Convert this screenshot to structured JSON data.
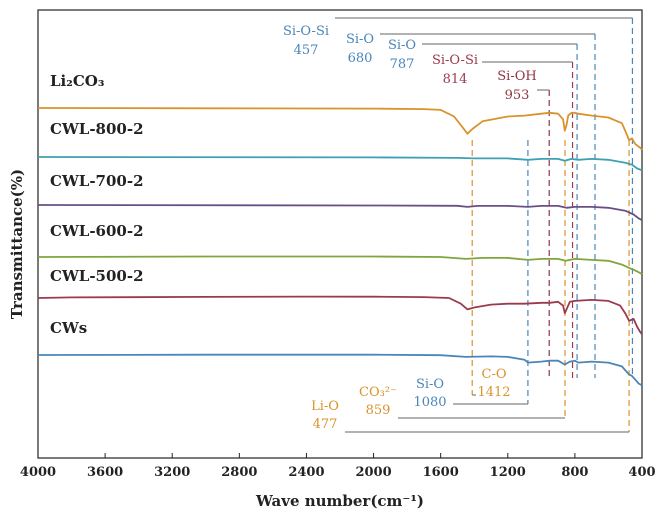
{
  "colors": {
    "blue": "#4a86b8",
    "red": "#9b3a4e",
    "orange": "#d9932b",
    "teal": "#3e9fb5",
    "purple": "#6a4f86",
    "green": "#7fa53d",
    "maroon": "#8f3545",
    "gray": "#555555"
  },
  "chart_data": {
    "type": "line",
    "xlabel": "Wave number(cm⁻¹)",
    "ylabel": "Transmittance(%)",
    "xlim": [
      4000,
      400
    ],
    "x_ticks": [
      "4000",
      "3600",
      "3200",
      "2800",
      "2400",
      "2000",
      "1600",
      "1200",
      "800",
      "400"
    ],
    "y_ticks": [],
    "grid": false,
    "series": [
      {
        "name": "Li₂CO₃",
        "color": "#d9932b",
        "points": [
          [
            4000,
            0
          ],
          [
            3000,
            0.3
          ],
          [
            2000,
            0.6
          ],
          [
            1700,
            1.2
          ],
          [
            1600,
            2
          ],
          [
            1520,
            9
          ],
          [
            1480,
            18
          ],
          [
            1440,
            27
          ],
          [
            1410,
            22
          ],
          [
            1350,
            14
          ],
          [
            1200,
            9
          ],
          [
            1100,
            8
          ],
          [
            1000,
            6
          ],
          [
            950,
            5
          ],
          [
            900,
            6
          ],
          [
            870,
            12
          ],
          [
            860,
            24
          ],
          [
            850,
            18
          ],
          [
            840,
            8
          ],
          [
            820,
            5
          ],
          [
            800,
            5
          ],
          [
            780,
            6
          ],
          [
            700,
            8
          ],
          [
            600,
            10
          ],
          [
            520,
            16
          ],
          [
            490,
            28
          ],
          [
            477,
            34
          ],
          [
            460,
            32
          ],
          [
            440,
            38
          ],
          [
            410,
            42
          ],
          [
            400,
            44
          ]
        ]
      },
      {
        "name": "CWL-800-2",
        "color": "#3e9fb5",
        "points": [
          [
            4000,
            0
          ],
          [
            2000,
            0.4
          ],
          [
            1500,
            1
          ],
          [
            1400,
            1.5
          ],
          [
            1200,
            1.5
          ],
          [
            1080,
            3
          ],
          [
            1000,
            2
          ],
          [
            900,
            2
          ],
          [
            860,
            4
          ],
          [
            820,
            2
          ],
          [
            780,
            3
          ],
          [
            700,
            2
          ],
          [
            600,
            3
          ],
          [
            500,
            6
          ],
          [
            460,
            8
          ],
          [
            430,
            12
          ],
          [
            400,
            14
          ]
        ]
      },
      {
        "name": "CWL-700-2",
        "color": "#6a4f86",
        "points": [
          [
            4000,
            0
          ],
          [
            2000,
            0.5
          ],
          [
            1500,
            0.8
          ],
          [
            1440,
            2
          ],
          [
            1380,
            1
          ],
          [
            1200,
            1
          ],
          [
            1080,
            2
          ],
          [
            1000,
            1
          ],
          [
            900,
            1
          ],
          [
            850,
            3
          ],
          [
            800,
            2
          ],
          [
            700,
            2
          ],
          [
            600,
            3
          ],
          [
            500,
            6
          ],
          [
            450,
            10
          ],
          [
            420,
            14
          ],
          [
            400,
            16
          ]
        ]
      },
      {
        "name": "CWL-600-2",
        "color": "#7fa53d",
        "points": [
          [
            4000,
            0
          ],
          [
            3000,
            -0.5
          ],
          [
            2000,
            -0.5
          ],
          [
            1600,
            0
          ],
          [
            1450,
            2
          ],
          [
            1350,
            1
          ],
          [
            1200,
            1
          ],
          [
            1080,
            3
          ],
          [
            1000,
            2
          ],
          [
            900,
            2
          ],
          [
            855,
            4
          ],
          [
            800,
            2
          ],
          [
            700,
            3
          ],
          [
            600,
            4
          ],
          [
            520,
            8
          ],
          [
            470,
            12
          ],
          [
            430,
            15
          ],
          [
            400,
            18
          ]
        ]
      },
      {
        "name": "CWL-500-2",
        "color": "#9b3a4e",
        "points": [
          [
            4000,
            0
          ],
          [
            3800,
            -0.6
          ],
          [
            3000,
            -1.2
          ],
          [
            2400,
            -1.5
          ],
          [
            2000,
            -1.4
          ],
          [
            1700,
            -1
          ],
          [
            1550,
            0
          ],
          [
            1480,
            6
          ],
          [
            1440,
            12
          ],
          [
            1400,
            10
          ],
          [
            1300,
            7
          ],
          [
            1200,
            6
          ],
          [
            1100,
            6
          ],
          [
            1000,
            5
          ],
          [
            950,
            5
          ],
          [
            900,
            4
          ],
          [
            870,
            8
          ],
          [
            860,
            16
          ],
          [
            850,
            12
          ],
          [
            830,
            4
          ],
          [
            800,
            3
          ],
          [
            700,
            2
          ],
          [
            600,
            3
          ],
          [
            530,
            8
          ],
          [
            500,
            16
          ],
          [
            477,
            24
          ],
          [
            450,
            22
          ],
          [
            430,
            30
          ],
          [
            410,
            36
          ],
          [
            400,
            38
          ]
        ]
      },
      {
        "name": "CWs",
        "color": "#4a86b8",
        "points": [
          [
            4000,
            0
          ],
          [
            3000,
            -0.3
          ],
          [
            2000,
            -0.3
          ],
          [
            1600,
            0.2
          ],
          [
            1450,
            2
          ],
          [
            1300,
            1.5
          ],
          [
            1200,
            2
          ],
          [
            1100,
            5
          ],
          [
            1080,
            8
          ],
          [
            1000,
            7
          ],
          [
            950,
            6
          ],
          [
            900,
            6
          ],
          [
            860,
            10
          ],
          [
            830,
            7
          ],
          [
            800,
            6
          ],
          [
            780,
            8
          ],
          [
            700,
            7
          ],
          [
            600,
            8
          ],
          [
            520,
            12
          ],
          [
            480,
            20
          ],
          [
            460,
            22
          ],
          [
            440,
            26
          ],
          [
            420,
            30
          ],
          [
            400,
            32
          ]
        ]
      }
    ],
    "annotations": {
      "top": [
        {
          "name": "Si-O-Si",
          "value": "457",
          "x": 457,
          "color": "#4a86b8"
        },
        {
          "name": "Si-O",
          "value": "680",
          "x": 680,
          "color": "#4a86b8"
        },
        {
          "name": "Si-O",
          "value": "787",
          "x": 787,
          "color": "#4a86b8"
        },
        {
          "name": "Si-O-Si",
          "value": "814",
          "x": 814,
          "color": "#9b3a4e"
        },
        {
          "name": "Si-OH",
          "value": "953",
          "x": 953,
          "color": "#8f3545"
        }
      ],
      "bottom": [
        {
          "name": "C-O",
          "value": "1412",
          "x": 1412,
          "color": "#d9932b"
        },
        {
          "name": "Si-O",
          "value": "1080",
          "x": 1080,
          "color": "#4a86b8"
        },
        {
          "name": "CO₃²⁻",
          "value": "859",
          "x": 859,
          "color": "#d9932b"
        },
        {
          "name": "Li-O",
          "value": "477",
          "x": 477,
          "color": "#d9932b"
        }
      ]
    }
  }
}
